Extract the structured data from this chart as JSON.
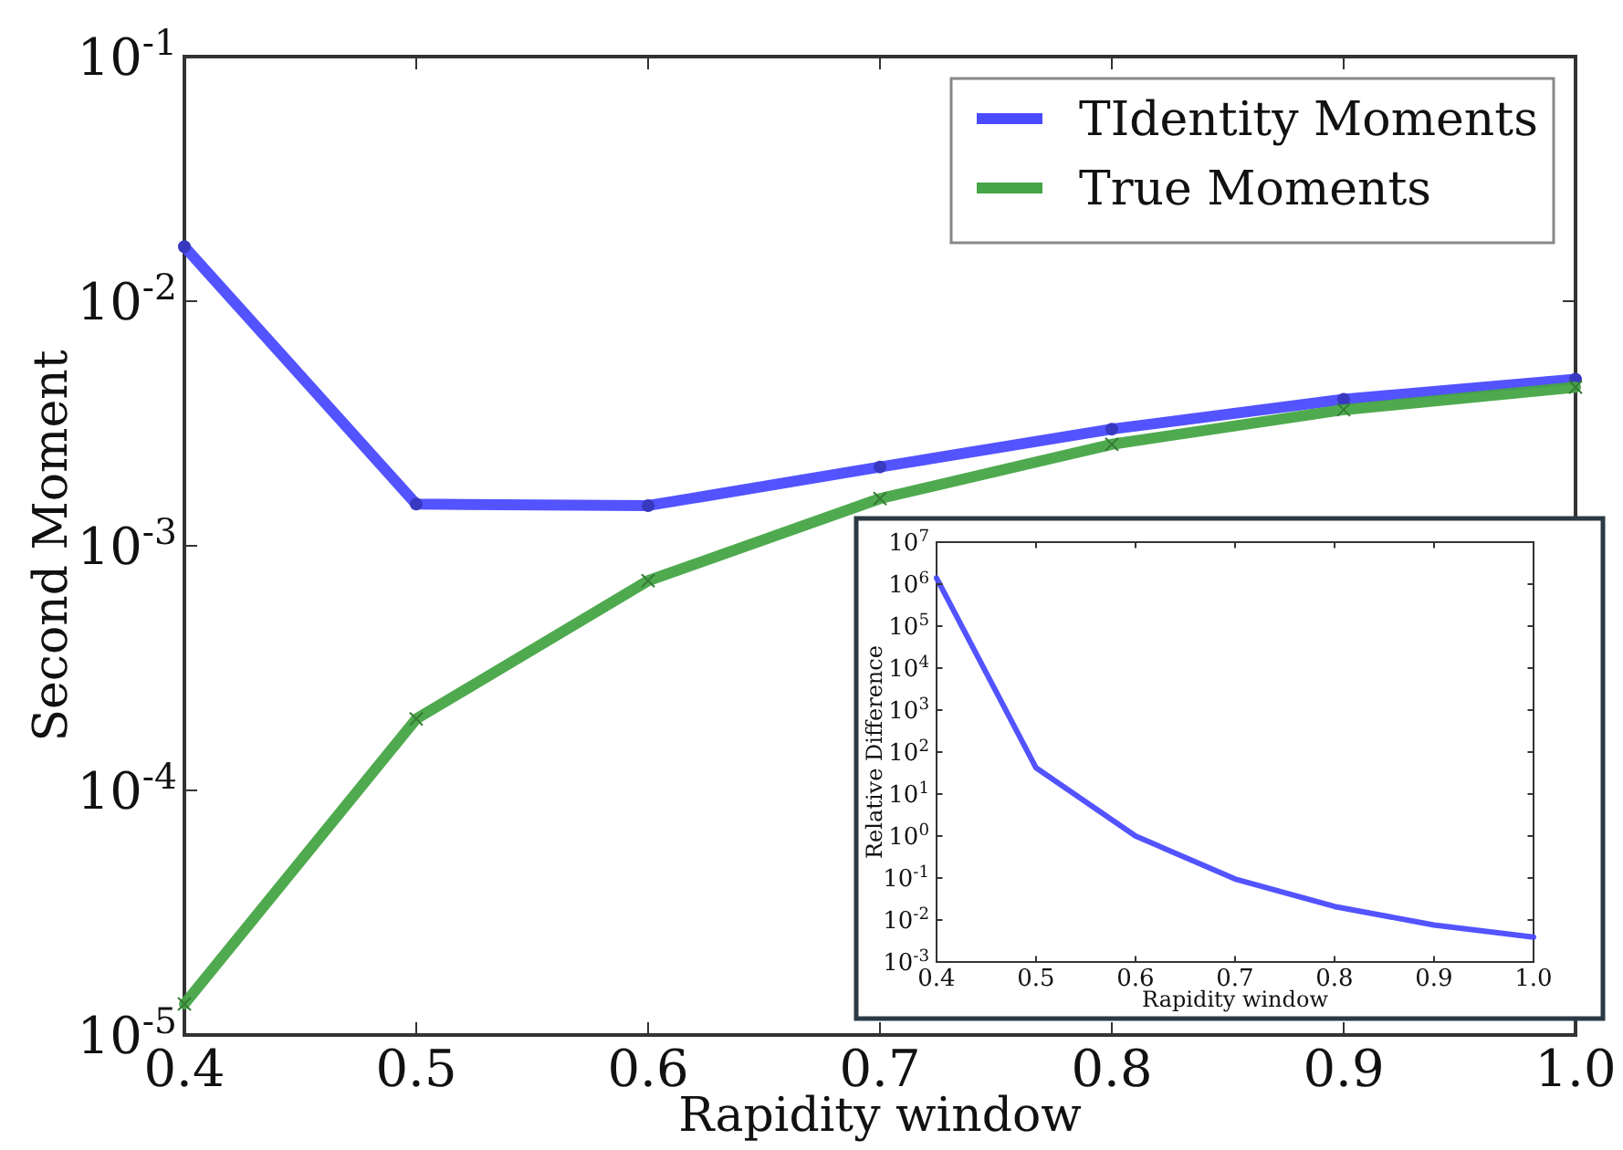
{
  "chart_data": [
    {
      "type": "line",
      "xlabel": "Rapidity window",
      "ylabel": "Second Moment",
      "x": [
        0.4,
        0.5,
        0.6,
        0.7,
        0.8,
        0.9,
        1.0
      ],
      "series": [
        {
          "name": "TIdentity Moments",
          "color": "#4a4aff",
          "marker": "circle",
          "values": [
            0.0167,
            0.00148,
            0.00146,
            0.0021,
            0.003,
            0.00397,
            0.0048
          ]
        },
        {
          "name": "True Moments",
          "color": "#46a546",
          "marker": "cross",
          "values": [
            1.34e-05,
            0.000196,
            0.00072,
            0.00156,
            0.0026,
            0.0036,
            0.00445
          ]
        }
      ],
      "log": "y",
      "xlim": [
        0.4,
        1.0
      ],
      "xticks": [
        0.4,
        0.5,
        0.6,
        0.7,
        0.8,
        0.9,
        {
          "value": 1,
          "label": "1.0"
        }
      ],
      "ylim": [
        1e-05,
        0.1
      ],
      "yticks": [
        {
          "value": 1e-05,
          "label": "10$^{-5}$"
        },
        {
          "value": 0.0001,
          "label": "10$^{-4}$"
        },
        {
          "value": 0.001,
          "label": "10$^{-3}$"
        },
        {
          "value": 0.01,
          "label": "10$^{-2}$"
        },
        {
          "value": 0.1,
          "label": "10$^{-1}$"
        }
      ],
      "legend": "top right"
    },
    {
      "type": "line",
      "xlabel": "Rapidity window",
      "ylabel": "Relative Difference",
      "x": [
        0.4,
        0.5,
        0.6,
        0.7,
        0.8,
        0.9,
        1.0
      ],
      "series": [
        {
          "color": "#4a4aff",
          "values": [
            1400000,
            42,
            1.0,
            0.095,
            0.021,
            0.0076,
            0.0039
          ]
        }
      ],
      "log": "y",
      "xlim": [
        0.4,
        1.0
      ],
      "xticks": [
        0.4,
        0.5,
        0.6,
        0.7,
        0.8,
        0.9,
        {
          "value": 1,
          "label": "1.0"
        }
      ],
      "ylim": [
        0.001,
        10000000
      ],
      "yticks": [
        {
          "value": 0.001,
          "label": "10$^{-3}$"
        },
        {
          "value": 0.01,
          "label": "10$^{-2}$"
        },
        {
          "value": 0.1,
          "label": "10$^{-1}$"
        },
        {
          "value": 1,
          "label": "10$^{0}$"
        },
        {
          "value": 10,
          "label": "10$^{1}$"
        },
        {
          "value": 100,
          "label": "10$^{2}$"
        },
        {
          "value": 1000,
          "label": "10$^{3}$"
        },
        {
          "value": 10000,
          "label": "10$^{4}$"
        },
        {
          "value": 100000,
          "label": "10$^{5}$"
        },
        {
          "value": 1000000,
          "label": "10$^{6}$"
        },
        {
          "value": 10000000,
          "label": "10$^{7}$"
        }
      ]
    }
  ]
}
